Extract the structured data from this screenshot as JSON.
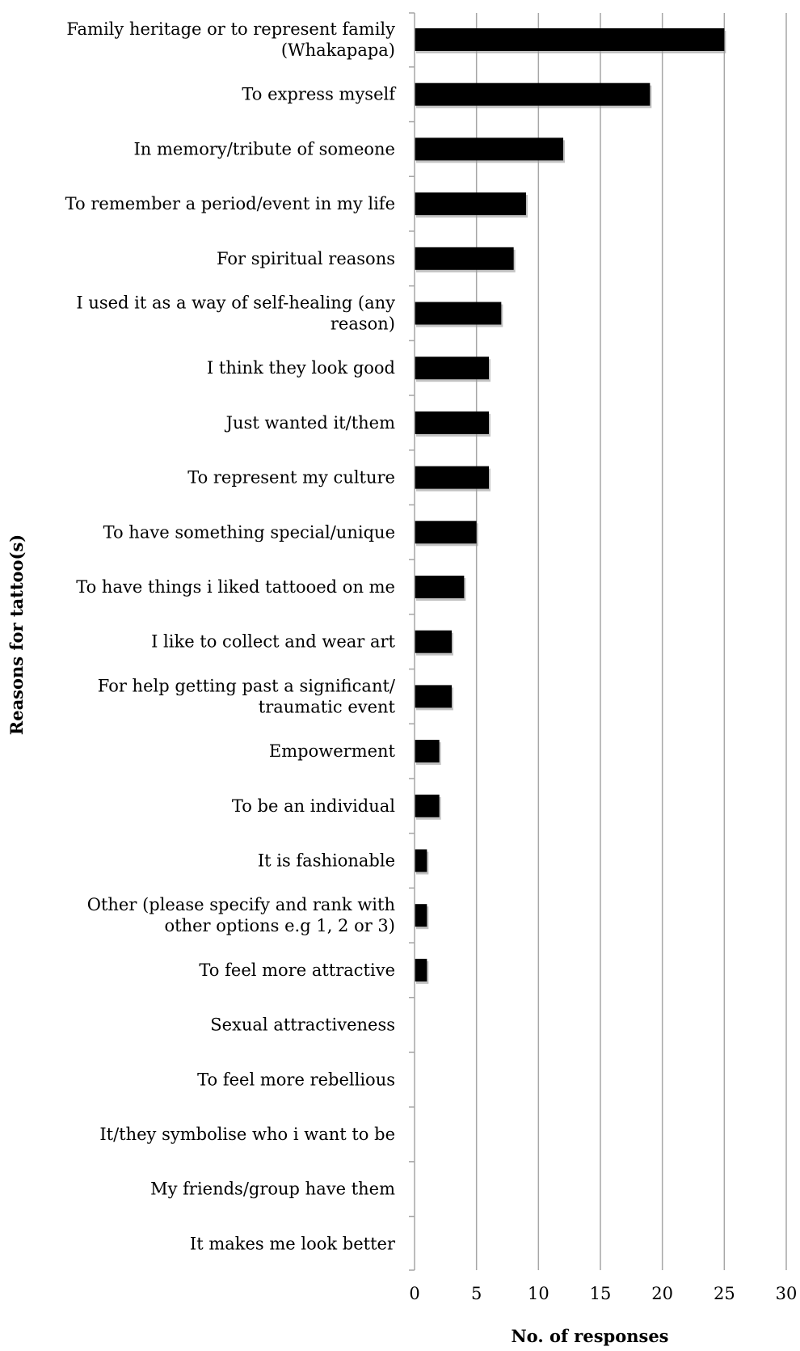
{
  "chart_data": {
    "type": "bar",
    "orientation": "horizontal",
    "title": "",
    "xlabel": "No. of responses",
    "ylabel": "Reasons for tattoo(s)",
    "xlim": [
      0,
      30
    ],
    "xticks": [
      0,
      5,
      10,
      15,
      20,
      25,
      30
    ],
    "grid": "vertical",
    "bar_color": "#000000",
    "grid_color": "#a6a6a6",
    "categories": [
      "Family heritage or to represent family (Whakapapa)",
      "To express myself",
      "In memory/tribute of someone",
      "To remember a period/event in my life",
      "For spiritual reasons",
      "I used it as a way of self-healing (any reason)",
      "I think they look good",
      "Just wanted it/them",
      "To represent my culture",
      "To have something special/unique",
      "To have things i liked tattooed on me",
      "I like to collect and wear art",
      "For help getting past a significant/ traumatic event",
      "Empowerment",
      "To be an individual",
      "It is fashionable",
      "Other (please specify and rank with other options e.g 1, 2 or 3)",
      "To feel more attractive",
      "Sexual attractiveness",
      "To feel more rebellious",
      "It/they symbolise who i want to be",
      "My friends/group have them",
      "It makes me look better"
    ],
    "category_lines": [
      [
        "Family heritage or to represent family",
        "(Whakapapa)"
      ],
      [
        "To express myself"
      ],
      [
        "In memory/tribute of someone"
      ],
      [
        "To remember a period/event in my life"
      ],
      [
        "For spiritual reasons"
      ],
      [
        "I used it as a way of self-healing (any",
        "reason)"
      ],
      [
        "I think they look good"
      ],
      [
        "Just wanted it/them"
      ],
      [
        "To represent my culture"
      ],
      [
        "To have something special/unique"
      ],
      [
        "To have things i liked tattooed on me"
      ],
      [
        "I like to collect and wear art"
      ],
      [
        "For help getting past a significant/",
        "traumatic event"
      ],
      [
        "Empowerment"
      ],
      [
        "To be an individual"
      ],
      [
        "It is fashionable"
      ],
      [
        "Other (please specify and rank with",
        "other options e.g 1, 2 or 3)"
      ],
      [
        "To feel more attractive"
      ],
      [
        "Sexual attractiveness"
      ],
      [
        "To feel more rebellious"
      ],
      [
        "It/they symbolise who i want to be"
      ],
      [
        "My friends/group have them"
      ],
      [
        "It makes me look better"
      ]
    ],
    "values": [
      25,
      19,
      12,
      9,
      8,
      7,
      6,
      6,
      6,
      5,
      4,
      3,
      3,
      2,
      2,
      1,
      1,
      1,
      0,
      0,
      0,
      0,
      0
    ]
  }
}
